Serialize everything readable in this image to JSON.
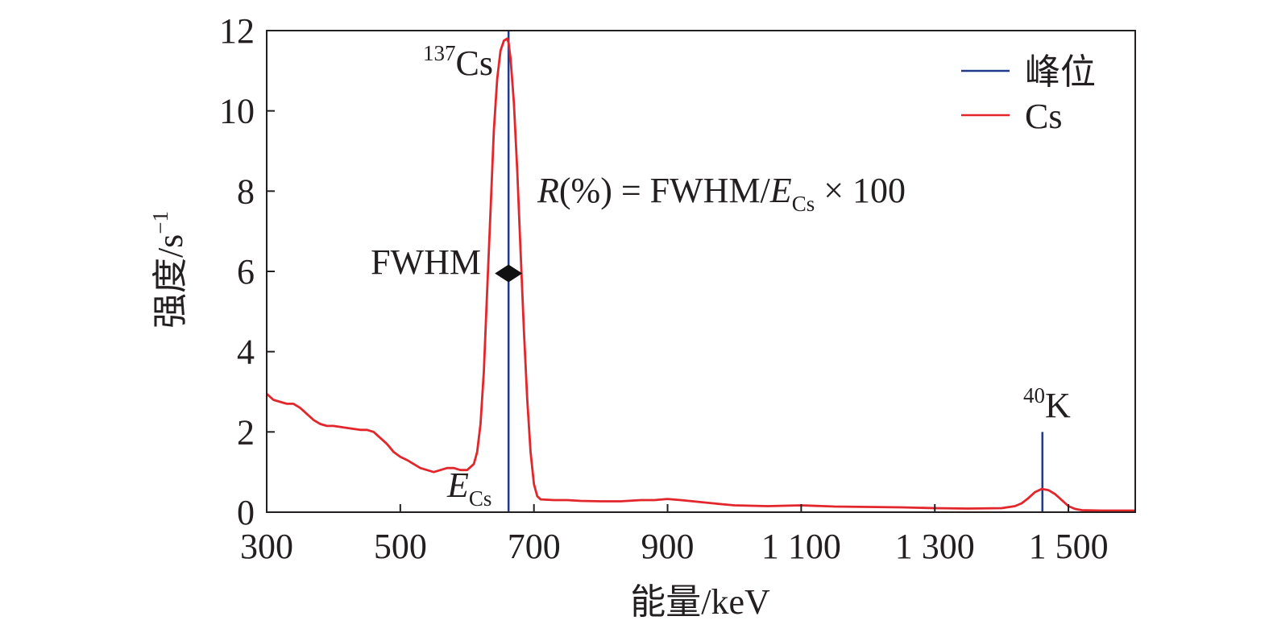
{
  "chart_data": {
    "type": "line",
    "title": "",
    "xlabel": "能量/keV",
    "ylabel": "强度/s",
    "ylabel_sup": "−1",
    "xlim": [
      300,
      1600
    ],
    "ylim": [
      0,
      12
    ],
    "xticks": [
      {
        "value": 300,
        "label": "300"
      },
      {
        "value": 500,
        "label": "500"
      },
      {
        "value": 700,
        "label": "700"
      },
      {
        "value": 900,
        "label": "900"
      },
      {
        "value": 1100,
        "label": "1 100"
      },
      {
        "value": 1300,
        "label": "1 300"
      },
      {
        "value": 1500,
        "label": "1 500"
      }
    ],
    "yticks": [
      {
        "value": 0,
        "label": "0"
      },
      {
        "value": 2,
        "label": "2"
      },
      {
        "value": 4,
        "label": "4"
      },
      {
        "value": 6,
        "label": "6"
      },
      {
        "value": 8,
        "label": "8"
      },
      {
        "value": 10,
        "label": "10"
      },
      {
        "value": 12,
        "label": "12"
      }
    ],
    "grid": false,
    "legend_position": "top-right",
    "series": [
      {
        "name": "Cs",
        "color": "#e3262b",
        "x": [
          300,
          310,
          320,
          330,
          340,
          350,
          360,
          370,
          380,
          390,
          400,
          420,
          440,
          450,
          460,
          470,
          480,
          490,
          500,
          510,
          520,
          530,
          540,
          550,
          560,
          570,
          580,
          590,
          600,
          610,
          615,
          620,
          625,
          630,
          635,
          640,
          645,
          650,
          655,
          660,
          662,
          665,
          670,
          675,
          680,
          685,
          690,
          695,
          700,
          705,
          710,
          730,
          750,
          770,
          800,
          830,
          860,
          880,
          900,
          920,
          950,
          980,
          1000,
          1050,
          1100,
          1150,
          1200,
          1250,
          1300,
          1350,
          1400,
          1420,
          1430,
          1440,
          1450,
          1460,
          1470,
          1480,
          1490,
          1500,
          1510,
          1520,
          1550,
          1600
        ],
        "y": [
          2.95,
          2.8,
          2.75,
          2.7,
          2.7,
          2.6,
          2.45,
          2.3,
          2.2,
          2.15,
          2.15,
          2.1,
          2.05,
          2.05,
          2.0,
          1.85,
          1.7,
          1.5,
          1.38,
          1.3,
          1.2,
          1.1,
          1.05,
          1.0,
          1.05,
          1.1,
          1.1,
          1.05,
          1.05,
          1.2,
          1.5,
          2.2,
          3.5,
          5.5,
          7.5,
          9.5,
          10.8,
          11.5,
          11.75,
          11.8,
          11.7,
          11.3,
          10.2,
          8.5,
          6.5,
          4.5,
          2.8,
          1.5,
          0.7,
          0.4,
          0.32,
          0.3,
          0.3,
          0.28,
          0.27,
          0.27,
          0.3,
          0.3,
          0.33,
          0.3,
          0.25,
          0.2,
          0.17,
          0.15,
          0.17,
          0.14,
          0.13,
          0.12,
          0.1,
          0.09,
          0.1,
          0.15,
          0.22,
          0.35,
          0.5,
          0.58,
          0.55,
          0.45,
          0.3,
          0.15,
          0.08,
          0.05,
          0.04,
          0.04
        ]
      }
    ],
    "peaks": [
      {
        "name": "峰位",
        "color": "#223a8c",
        "x": 662,
        "y": 12
      },
      {
        "name": "峰位",
        "color": "#223a8c",
        "x": 1461,
        "y": 2
      }
    ],
    "fwhm_marker": {
      "x": 662,
      "y": 5.95,
      "label": "FWHM"
    },
    "annotations": {
      "cs_peak": {
        "sup": "137",
        "main": "Cs"
      },
      "k_peak": {
        "sup": "40",
        "main": "K"
      },
      "e_cs": {
        "main": "E",
        "sub": "Cs"
      },
      "formula": {
        "r": "R",
        "part1": "(%) = FWHM/",
        "e": "E",
        "sub": "Cs",
        "part2": " × 100"
      }
    },
    "legend": [
      {
        "label": "峰位",
        "color": "#223a8c"
      },
      {
        "label": "Cs",
        "color": "#e3262b"
      }
    ]
  }
}
